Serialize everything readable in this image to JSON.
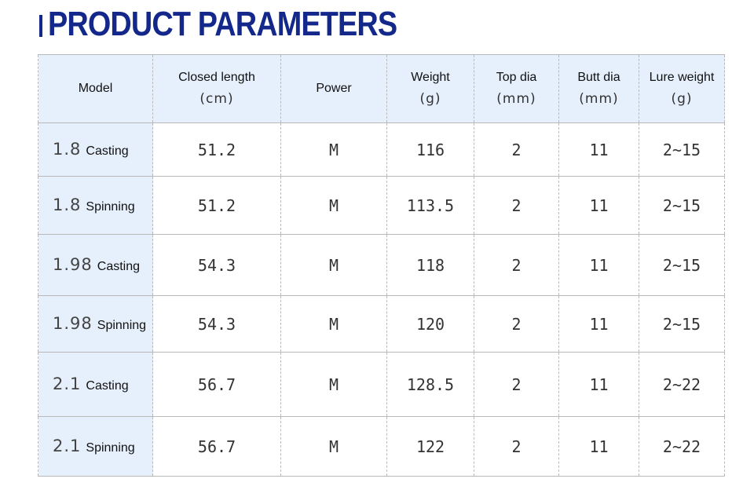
{
  "title": "PRODUCT PARAMETERS",
  "colors": {
    "title": "#13288a",
    "header_bg": "#e6f0fc",
    "border": "#b9b9b9"
  },
  "headers": [
    {
      "label": "Model",
      "unit": ""
    },
    {
      "label": "Closed length",
      "unit": "(cm)"
    },
    {
      "label": "Power",
      "unit": ""
    },
    {
      "label": "Weight",
      "unit": "(g)"
    },
    {
      "label": "Top dia",
      "unit": "(mm)"
    },
    {
      "label": "Butt dia",
      "unit": "(mm)"
    },
    {
      "label": "Lure weight",
      "unit": "(g)"
    }
  ],
  "rows": [
    {
      "length": "1.8",
      "type": "Casting",
      "closed": "51.2",
      "power": "M",
      "weight": "116",
      "top": "2",
      "butt": "11",
      "lure": "2~15"
    },
    {
      "length": "1.8",
      "type": "Spinning",
      "closed": "51.2",
      "power": "M",
      "weight": "113.5",
      "top": "2",
      "butt": "11",
      "lure": "2~15"
    },
    {
      "length": "1.98",
      "type": "Casting",
      "closed": "54.3",
      "power": "M",
      "weight": "118",
      "top": "2",
      "butt": "11",
      "lure": "2~15"
    },
    {
      "length": "1.98",
      "type": "Spinning",
      "closed": "54.3",
      "power": "M",
      "weight": "120",
      "top": "2",
      "butt": "11",
      "lure": "2~15"
    },
    {
      "length": "2.1",
      "type": "Casting",
      "closed": "56.7",
      "power": "M",
      "weight": "128.5",
      "top": "2",
      "butt": "11",
      "lure": "2~22"
    },
    {
      "length": "2.1",
      "type": "Spinning",
      "closed": "56.7",
      "power": "M",
      "weight": "122",
      "top": "2",
      "butt": "11",
      "lure": "2~22"
    }
  ]
}
